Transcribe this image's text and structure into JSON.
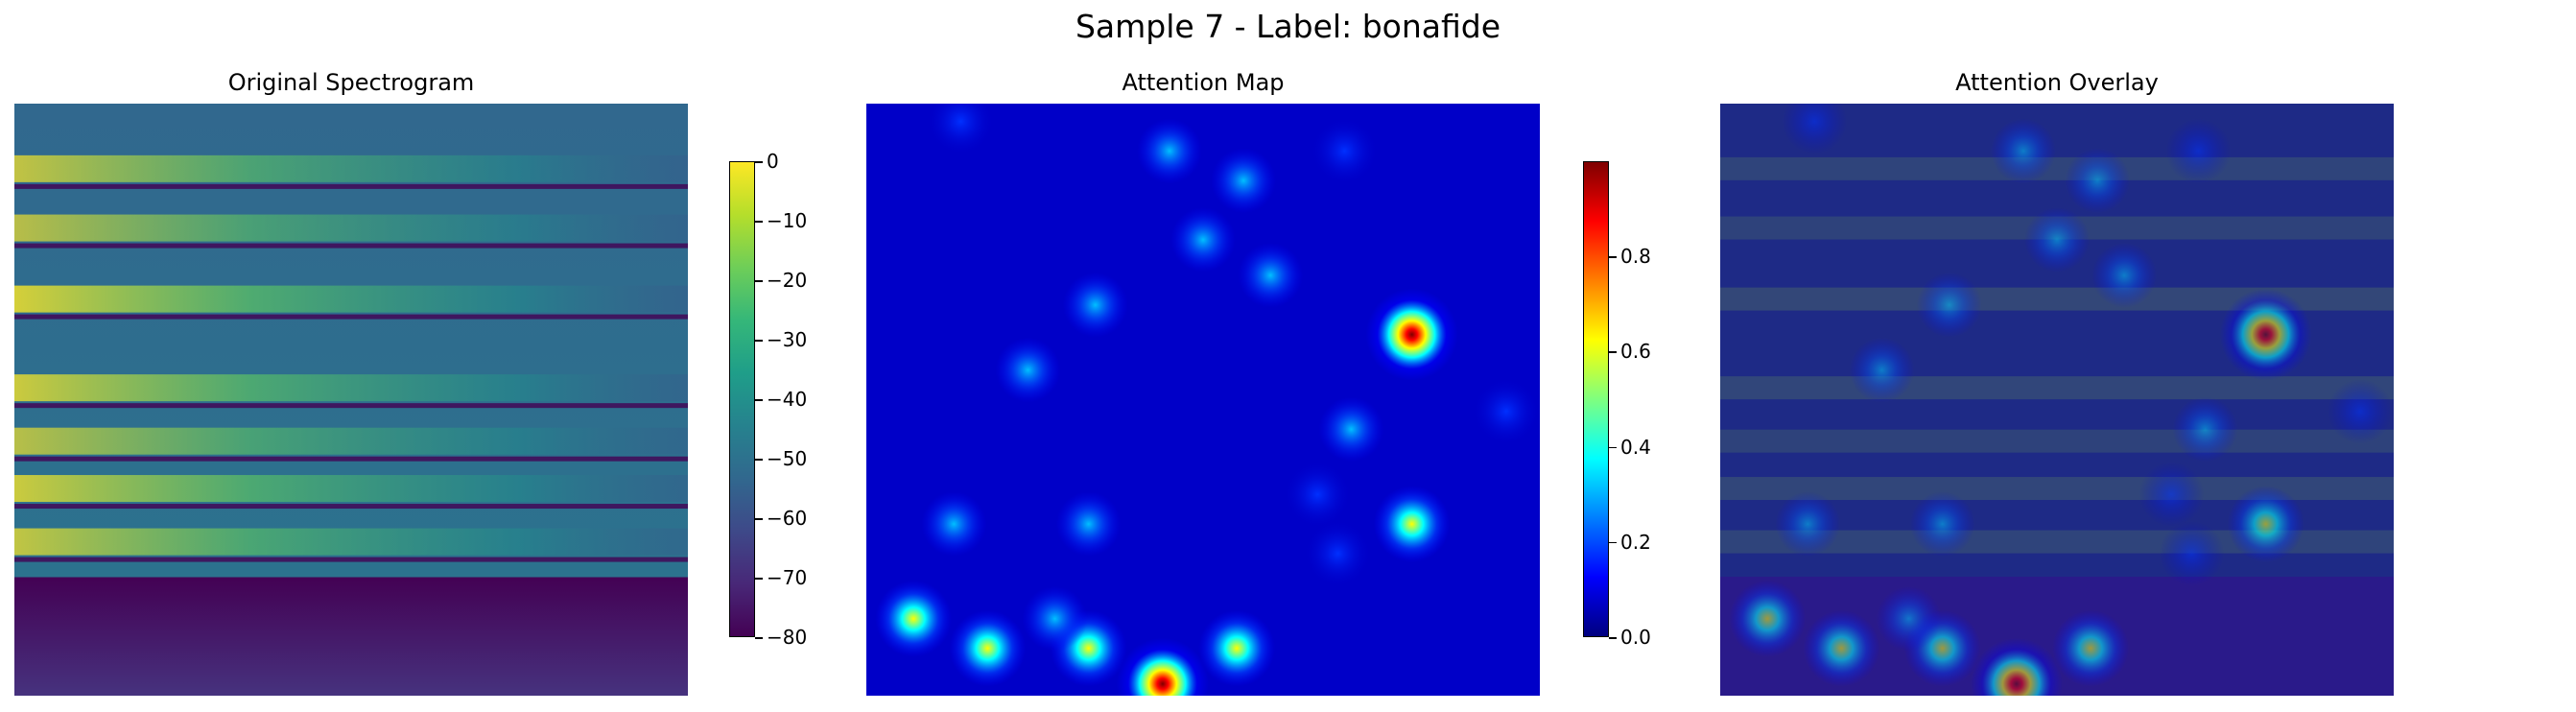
{
  "suptitle": "Sample 7 - Label: bonafide",
  "panels": [
    {
      "title": "Original Spectrogram"
    },
    {
      "title": "Attention Map"
    },
    {
      "title": "Attention Overlay"
    }
  ],
  "colors": {
    "viridis": [
      "#440154",
      "#3b528b",
      "#21918c",
      "#5ec962",
      "#fde725"
    ],
    "jet": [
      "#00007f",
      "#0000ff",
      "#00ffff",
      "#ffff00",
      "#ff0000",
      "#7f0000"
    ]
  },
  "chart_data": [
    {
      "type": "heatmap",
      "title": "Original Spectrogram",
      "colormap": "viridis",
      "colorbar": {
        "range": [
          -80,
          0
        ],
        "ticks": [
          "0",
          "−10",
          "−20",
          "−30",
          "−40",
          "−50",
          "−60",
          "−70",
          "−80"
        ]
      },
      "axes": "off",
      "bright_bands": [
        {
          "y": 0.11,
          "strength": 0.75
        },
        {
          "y": 0.21,
          "strength": 0.7
        },
        {
          "y": 0.33,
          "strength": 0.85
        },
        {
          "y": 0.48,
          "strength": 0.8
        },
        {
          "y": 0.57,
          "strength": 0.7
        },
        {
          "y": 0.65,
          "strength": 0.8
        },
        {
          "y": 0.74,
          "strength": 0.75
        }
      ]
    },
    {
      "type": "heatmap",
      "title": "Attention Map",
      "colormap": "jet",
      "colorbar": {
        "range": [
          0,
          1.0
        ],
        "ticks": [
          "0.8",
          "0.6",
          "0.4",
          "0.2",
          "0.0"
        ]
      },
      "axes": "off",
      "peaks": [
        {
          "x": 0.81,
          "y": 0.39,
          "value": 0.97
        },
        {
          "x": 0.44,
          "y": 0.98,
          "value": 1.0
        },
        {
          "x": 0.81,
          "y": 0.71,
          "value": 0.55
        },
        {
          "x": 0.18,
          "y": 0.92,
          "value": 0.55
        },
        {
          "x": 0.33,
          "y": 0.92,
          "value": 0.55
        },
        {
          "x": 0.55,
          "y": 0.92,
          "value": 0.5
        },
        {
          "x": 0.07,
          "y": 0.87,
          "value": 0.45
        },
        {
          "x": 0.28,
          "y": 0.87,
          "value": 0.4
        },
        {
          "x": 0.5,
          "y": 0.23,
          "value": 0.4
        },
        {
          "x": 0.13,
          "y": 0.71,
          "value": 0.35
        },
        {
          "x": 0.34,
          "y": 0.34,
          "value": 0.3
        },
        {
          "x": 0.56,
          "y": 0.13,
          "value": 0.25
        },
        {
          "x": 0.72,
          "y": 0.55,
          "value": 0.25
        },
        {
          "x": 0.6,
          "y": 0.29,
          "value": 0.22
        },
        {
          "x": 0.45,
          "y": 0.08,
          "value": 0.22
        },
        {
          "x": 0.24,
          "y": 0.45,
          "value": 0.22
        },
        {
          "x": 0.33,
          "y": 0.71,
          "value": 0.22
        },
        {
          "x": 0.67,
          "y": 0.66,
          "value": 0.2
        },
        {
          "x": 0.7,
          "y": 0.76,
          "value": 0.18
        },
        {
          "x": 0.14,
          "y": 0.03,
          "value": 0.2
        },
        {
          "x": 0.71,
          "y": 0.08,
          "value": 0.15
        },
        {
          "x": 0.95,
          "y": 0.52,
          "value": 0.12
        }
      ]
    },
    {
      "type": "heatmap",
      "title": "Attention Overlay",
      "colormap": "jet over viridis",
      "axes": "off"
    }
  ]
}
